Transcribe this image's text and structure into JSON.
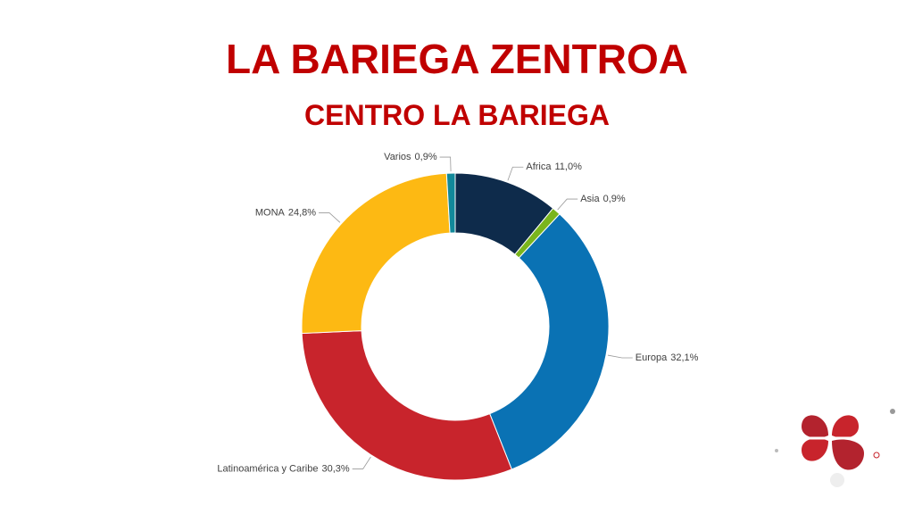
{
  "chart_data": {
    "type": "pie",
    "title": "LA BARIEGA ZENTROA",
    "subtitle": "CENTRO LA BARIEGA",
    "categories": [
      "Africa",
      "Asia",
      "Europa",
      "Latinoamérica y Caribe",
      "MONA",
      "Varios"
    ],
    "values": [
      11.0,
      0.9,
      32.1,
      30.3,
      24.8,
      0.9
    ],
    "value_labels": [
      "11,0%",
      "0,9%",
      "32,1%",
      "30,3%",
      "24,8%",
      "0,9%"
    ],
    "colors": [
      "#0e2b4b",
      "#7ab51d",
      "#0a72b4",
      "#c8242c",
      "#fdb913",
      "#12899a"
    ]
  }
}
